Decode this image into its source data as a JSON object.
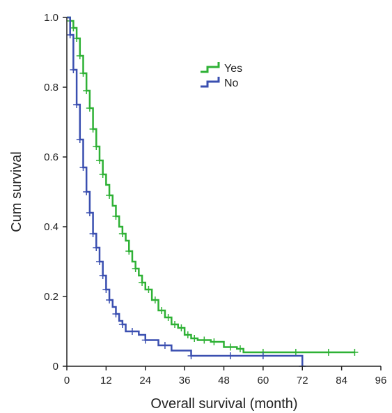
{
  "chart_data": {
    "type": "line",
    "xlabel": "Overall survival (month)",
    "ylabel": "Cum survival",
    "xlim": [
      0,
      96
    ],
    "ylim": [
      0,
      1.0
    ],
    "x_ticks": [
      0,
      12,
      24,
      36,
      48,
      60,
      72,
      84,
      96
    ],
    "x_tick_labels": [
      "0",
      "12",
      "24",
      "36",
      "48",
      "60",
      "72",
      "84",
      "96"
    ],
    "y_ticks": [
      0,
      0.2,
      0.4,
      0.6,
      0.8,
      1.0
    ],
    "y_tick_labels": [
      "0",
      "0.2",
      "0.4",
      "0.6",
      "0.8",
      "1.0"
    ],
    "legend_position": "top-center",
    "series": [
      {
        "name": "Yes",
        "color": "#2eb135",
        "step_x": [
          0,
          1,
          2,
          3,
          4,
          5,
          6,
          7,
          8,
          9,
          10,
          11,
          12,
          13,
          14,
          15,
          16,
          17,
          18,
          19,
          20,
          21,
          22,
          23,
          24,
          26,
          28,
          30,
          32,
          34,
          36,
          38,
          40,
          44,
          48,
          52,
          54,
          88
        ],
        "step_y": [
          1.0,
          0.99,
          0.97,
          0.94,
          0.89,
          0.84,
          0.79,
          0.74,
          0.68,
          0.63,
          0.59,
          0.55,
          0.52,
          0.49,
          0.46,
          0.43,
          0.4,
          0.38,
          0.36,
          0.33,
          0.3,
          0.28,
          0.26,
          0.24,
          0.22,
          0.19,
          0.16,
          0.14,
          0.12,
          0.11,
          0.09,
          0.08,
          0.075,
          0.07,
          0.055,
          0.05,
          0.04,
          0.04
        ],
        "censor_x": [
          1,
          2,
          3,
          4,
          5,
          6,
          7,
          8,
          9,
          10,
          11,
          13,
          15,
          17,
          19,
          21,
          23,
          25,
          27,
          29,
          31,
          33,
          35,
          37,
          39,
          42,
          45,
          50,
          53,
          60,
          70,
          80,
          88
        ]
      },
      {
        "name": "No",
        "color": "#3a4fb0",
        "step_x": [
          0,
          1,
          2,
          3,
          4,
          5,
          6,
          7,
          8,
          9,
          10,
          11,
          12,
          13,
          14,
          15,
          16,
          17,
          18,
          20,
          22,
          24,
          28,
          32,
          38,
          72
        ],
        "step_y": [
          1.0,
          0.95,
          0.85,
          0.75,
          0.65,
          0.57,
          0.5,
          0.44,
          0.38,
          0.34,
          0.3,
          0.26,
          0.22,
          0.19,
          0.17,
          0.15,
          0.13,
          0.12,
          0.1,
          0.1,
          0.09,
          0.075,
          0.06,
          0.045,
          0.03,
          0.0
        ],
        "censor_x": [
          1,
          2,
          3,
          4,
          5,
          6,
          7,
          8,
          9,
          10,
          11,
          12,
          13,
          15,
          17,
          20,
          24,
          30,
          38,
          50,
          60,
          72
        ]
      }
    ]
  }
}
